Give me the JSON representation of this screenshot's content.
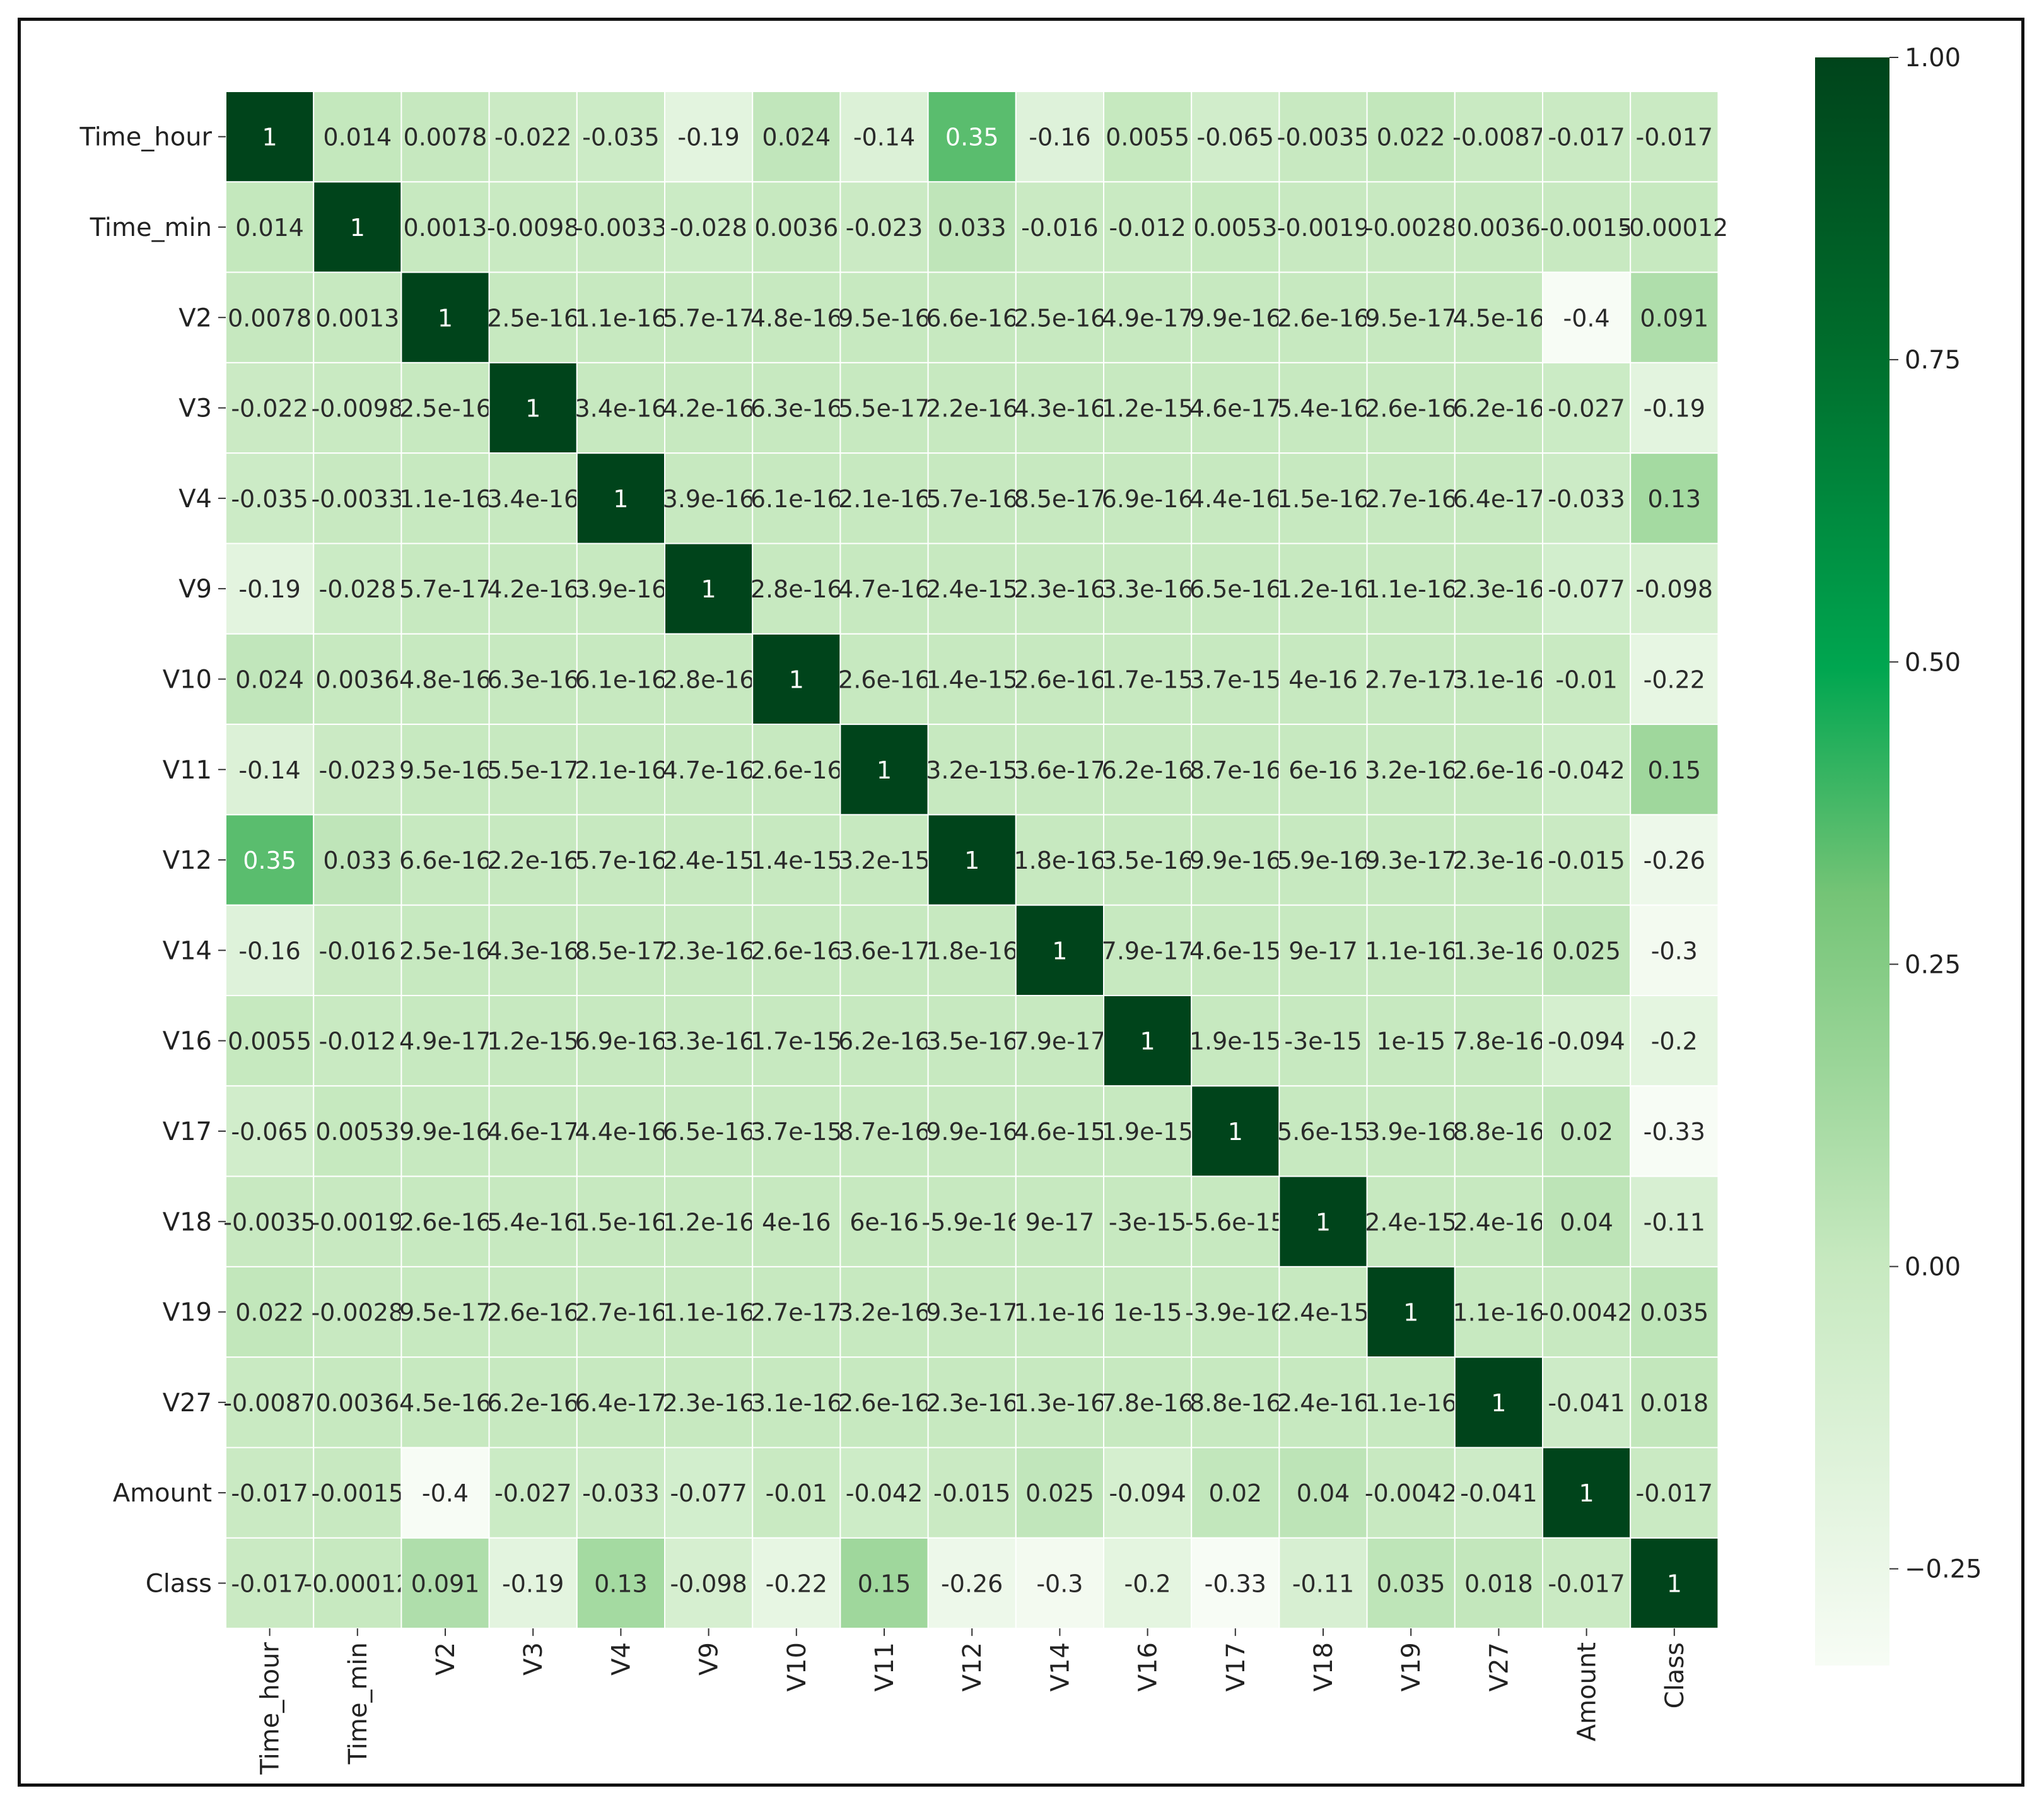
{
  "chart_data": {
    "type": "heatmap",
    "title": "",
    "xlabel": "",
    "ylabel": "",
    "labels": [
      "Time_hour",
      "Time_min",
      "V2",
      "V3",
      "V4",
      "V9",
      "V10",
      "V11",
      "V12",
      "V14",
      "V16",
      "V17",
      "V18",
      "V19",
      "V27",
      "Amount",
      "Class"
    ],
    "matrix": [
      [
        "1",
        "0.014",
        "0.0078",
        "-0.022",
        "-0.035",
        "-0.19",
        "0.024",
        "-0.14",
        "0.35",
        "-0.16",
        "0.0055",
        "-0.065",
        "-0.0035",
        "0.022",
        "-0.0087",
        "-0.017",
        "-0.017"
      ],
      [
        "0.014",
        "1",
        "0.0013",
        "-0.0098",
        "-0.0033",
        "-0.028",
        "0.0036",
        "-0.023",
        "0.033",
        "-0.016",
        "-0.012",
        "0.0053",
        "-0.0019",
        "-0.0028",
        "0.0036",
        "-0.0015",
        "-0.00012"
      ],
      [
        "0.0078",
        "0.0013",
        "1",
        "2.5e-16",
        "1.1e-16",
        "5.7e-17",
        "4.8e-16",
        "9.5e-16",
        "6.6e-16",
        "2.5e-16",
        "4.9e-17",
        "9.9e-16",
        "2.6e-16",
        "9.5e-17",
        "4.5e-16",
        "-0.4",
        "0.091"
      ],
      [
        "-0.022",
        "-0.0098",
        "2.5e-16",
        "1",
        "3.4e-16",
        "4.2e-16",
        "6.3e-16",
        "5.5e-17",
        "2.2e-16",
        "4.3e-16",
        "1.2e-15",
        "4.6e-17",
        "5.4e-16",
        "2.6e-16",
        "6.2e-16",
        "-0.027",
        "-0.19"
      ],
      [
        "-0.035",
        "-0.0033",
        "1.1e-16",
        "3.4e-16",
        "1",
        "3.9e-16",
        "6.1e-16",
        "2.1e-16",
        "5.7e-16",
        "8.5e-17",
        "6.9e-16",
        "4.4e-16",
        "1.5e-16",
        "2.7e-16",
        "6.4e-17",
        "-0.033",
        "0.13"
      ],
      [
        "-0.19",
        "-0.028",
        "5.7e-17",
        "4.2e-16",
        "3.9e-16",
        "1",
        "2.8e-16",
        "4.7e-16",
        "2.4e-15",
        "2.3e-16",
        "3.3e-16",
        "6.5e-16",
        "1.2e-16",
        "1.1e-16",
        "2.3e-16",
        "-0.077",
        "-0.098"
      ],
      [
        "0.024",
        "0.0036",
        "4.8e-16",
        "6.3e-16",
        "6.1e-16",
        "2.8e-16",
        "1",
        "2.6e-16",
        "1.4e-15",
        "2.6e-16",
        "1.7e-15",
        "3.7e-15",
        "4e-16",
        "2.7e-17",
        "3.1e-16",
        "-0.01",
        "-0.22"
      ],
      [
        "-0.14",
        "-0.023",
        "9.5e-16",
        "5.5e-17",
        "2.1e-16",
        "4.7e-16",
        "2.6e-16",
        "1",
        "3.2e-15",
        "3.6e-17",
        "6.2e-16",
        "8.7e-16",
        "6e-16",
        "3.2e-16",
        "2.6e-16",
        "-0.042",
        "0.15"
      ],
      [
        "0.35",
        "0.033",
        "6.6e-16",
        "2.2e-16",
        "5.7e-16",
        "2.4e-15",
        "1.4e-15",
        "3.2e-15",
        "1",
        "1.8e-16",
        "3.5e-16",
        "9.9e-16",
        "5.9e-16",
        "9.3e-17",
        "2.3e-16",
        "-0.015",
        "-0.26"
      ],
      [
        "-0.16",
        "-0.016",
        "2.5e-16",
        "4.3e-16",
        "8.5e-17",
        "2.3e-16",
        "2.6e-16",
        "3.6e-17",
        "1.8e-16",
        "1",
        "7.9e-17",
        "4.6e-15",
        "9e-17",
        "1.1e-16",
        "1.3e-16",
        "0.025",
        "-0.3"
      ],
      [
        "0.0055",
        "-0.012",
        "4.9e-17",
        "1.2e-15",
        "6.9e-16",
        "3.3e-16",
        "1.7e-15",
        "6.2e-16",
        "3.5e-16",
        "7.9e-17",
        "1",
        "1.9e-15",
        "-3e-15",
        "1e-15",
        "7.8e-16",
        "-0.094",
        "-0.2"
      ],
      [
        "-0.065",
        "0.0053",
        "9.9e-16",
        "4.6e-17",
        "4.4e-16",
        "6.5e-16",
        "3.7e-15",
        "8.7e-16",
        "9.9e-16",
        "4.6e-15",
        "1.9e-15",
        "1",
        "5.6e-15",
        "3.9e-16",
        "8.8e-16",
        "0.02",
        "-0.33"
      ],
      [
        "-0.0035",
        "-0.0019",
        "2.6e-16",
        "5.4e-16",
        "1.5e-16",
        "1.2e-16",
        "4e-16",
        "6e-16",
        "-5.9e-16",
        "9e-17",
        "-3e-15",
        "-5.6e-15",
        "1",
        "2.4e-15",
        "2.4e-16",
        "0.04",
        "-0.11"
      ],
      [
        "0.022",
        "-0.0028",
        "9.5e-17",
        "2.6e-16",
        "2.7e-16",
        "1.1e-16",
        "2.7e-17",
        "3.2e-16",
        "9.3e-17",
        "1.1e-16",
        "1e-15",
        "-3.9e-16",
        "2.4e-15",
        "1",
        "1.1e-16",
        "-0.0042",
        "0.035"
      ],
      [
        "-0.0087",
        "0.0036",
        "4.5e-16",
        "6.2e-16",
        "6.4e-17",
        "2.3e-16",
        "3.1e-16",
        "2.6e-16",
        "2.3e-16",
        "1.3e-16",
        "7.8e-16",
        "8.8e-16",
        "2.4e-16",
        "1.1e-16",
        "1",
        "-0.041",
        "0.018"
      ],
      [
        "-0.017",
        "-0.0015",
        "-0.4",
        "-0.027",
        "-0.033",
        "-0.077",
        "-0.01",
        "-0.042",
        "-0.015",
        "0.025",
        "-0.094",
        "0.02",
        "0.04",
        "-0.0042",
        "-0.041",
        "1",
        "-0.017"
      ],
      [
        "-0.017",
        "-0.00012",
        "0.091",
        "-0.19",
        "0.13",
        "-0.098",
        "-0.22",
        "0.15",
        "-0.26",
        "-0.3",
        "-0.2",
        "-0.33",
        "-0.11",
        "0.035",
        "0.018",
        "-0.017",
        "1"
      ]
    ],
    "colorbar": {
      "min": -0.33,
      "max": 1.0,
      "ticks": [
        "1.00",
        "0.75",
        "0.50",
        "0.25",
        "0.00",
        "−0.25"
      ],
      "tick_values": [
        1.0,
        0.75,
        0.5,
        0.25,
        0.0,
        -0.25
      ]
    },
    "colormap": "Greens",
    "colors": {
      "low": "#f7fcf5",
      "mid": "#00a650",
      "high": "#00441b",
      "gridline": "#ffffff"
    },
    "grid": true,
    "legend_placement": "right"
  }
}
